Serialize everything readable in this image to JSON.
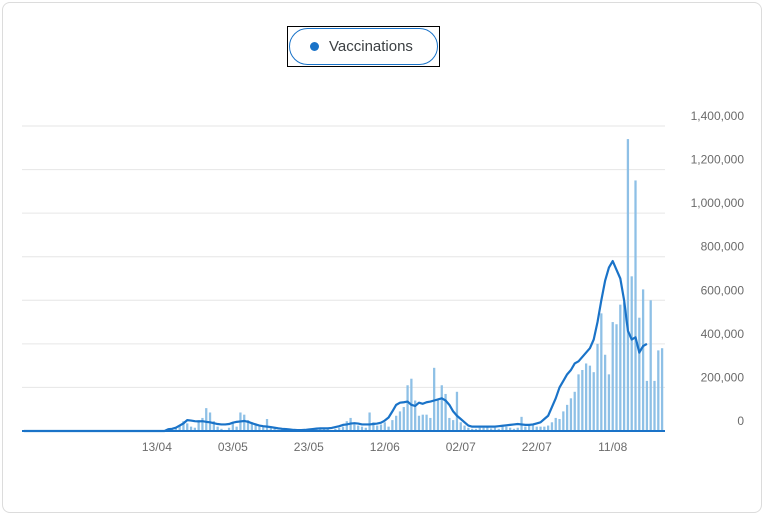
{
  "legend": {
    "label": "Vaccinations",
    "color": "#1a73c8"
  },
  "chart_data": {
    "type": "bar",
    "title": "",
    "xlabel": "",
    "ylabel": "",
    "ylim": [
      0,
      1400000
    ],
    "grid": true,
    "legend_position": "top-center",
    "y_ticks": [
      0,
      200000,
      400000,
      600000,
      800000,
      1000000,
      1200000,
      1400000
    ],
    "y_tick_labels": [
      "0",
      "200,000",
      "400,000",
      "600,000",
      "800,000",
      "1,000,000",
      "1,200,000",
      "1,400,000"
    ],
    "x_tick_labels": [
      {
        "label": "13/04",
        "day_index": 35
      },
      {
        "label": "03/05",
        "day_index": 55
      },
      {
        "label": "23/05",
        "day_index": 75
      },
      {
        "label": "12/06",
        "day_index": 95
      },
      {
        "label": "02/07",
        "day_index": 115
      },
      {
        "label": "22/07",
        "day_index": 135
      },
      {
        "label": "11/08",
        "day_index": 155
      }
    ],
    "series": [
      {
        "name": "Vaccinations",
        "color": "#1a73c8",
        "bar_color": "#8ec0e6",
        "daily_values": [
          0,
          0,
          0,
          0,
          0,
          0,
          0,
          0,
          0,
          0,
          0,
          0,
          0,
          0,
          0,
          0,
          0,
          0,
          0,
          0,
          0,
          0,
          0,
          0,
          0,
          0,
          0,
          0,
          0,
          0,
          0,
          0,
          0,
          0,
          0,
          0,
          0,
          0,
          5000,
          10000,
          15000,
          25000,
          45000,
          35000,
          20000,
          15000,
          50000,
          60000,
          105000,
          85000,
          45000,
          20000,
          10000,
          5000,
          15000,
          40000,
          20000,
          85000,
          75000,
          50000,
          40000,
          35000,
          20000,
          25000,
          55000,
          15000,
          10000,
          5000,
          10000,
          8000,
          5000,
          3000,
          2000,
          2000,
          3000,
          5000,
          8000,
          10000,
          12000,
          15000,
          8000,
          5000,
          10000,
          15000,
          20000,
          45000,
          60000,
          30000,
          25000,
          20000,
          15000,
          85000,
          40000,
          25000,
          30000,
          40000,
          20000,
          50000,
          70000,
          90000,
          110000,
          210000,
          240000,
          140000,
          70000,
          75000,
          75000,
          60000,
          290000,
          140000,
          210000,
          170000,
          60000,
          50000,
          180000,
          40000,
          25000,
          15000,
          10000,
          10000,
          15000,
          15000,
          20000,
          12000,
          15000,
          10000,
          20000,
          20000,
          15000,
          10000,
          15000,
          65000,
          20000,
          25000,
          30000,
          20000,
          20000,
          20000,
          25000,
          40000,
          60000,
          55000,
          90000,
          120000,
          150000,
          180000,
          260000,
          280000,
          310000,
          300000,
          270000,
          400000,
          540000,
          350000,
          260000,
          500000,
          490000,
          580000,
          590000,
          1340000,
          710000,
          1150000,
          520000,
          650000,
          230000,
          600000,
          230000,
          370000,
          380000
        ],
        "rolling_average": [
          0,
          0,
          0,
          0,
          0,
          0,
          0,
          0,
          0,
          0,
          0,
          0,
          0,
          0,
          0,
          0,
          0,
          0,
          0,
          0,
          0,
          0,
          0,
          0,
          0,
          0,
          0,
          0,
          0,
          0,
          0,
          0,
          0,
          0,
          0,
          0,
          0,
          0,
          8000,
          10000,
          15000,
          25000,
          35000,
          50000,
          48000,
          45000,
          44000,
          45000,
          42000,
          40000,
          36000,
          32000,
          30000,
          30000,
          32000,
          38000,
          42000,
          44000,
          46000,
          42000,
          36000,
          30000,
          25000,
          22000,
          20000,
          18000,
          15000,
          12000,
          10000,
          9000,
          7000,
          5000,
          4000,
          4000,
          5000,
          7000,
          9000,
          11000,
          12000,
          12000,
          12000,
          14000,
          18000,
          22000,
          28000,
          30000,
          34000,
          36000,
          34000,
          30000,
          30000,
          30000,
          32000,
          34000,
          38000,
          48000,
          62000,
          90000,
          120000,
          130000,
          132000,
          135000,
          120000,
          115000,
          130000,
          125000,
          132000,
          135000,
          140000,
          145000,
          150000,
          140000,
          120000,
          90000,
          70000,
          55000,
          40000,
          25000,
          20000,
          20000,
          20000,
          20000,
          20000,
          20000,
          20000,
          22000,
          24000,
          26000,
          28000,
          30000,
          32000,
          30000,
          28000,
          28000,
          30000,
          35000,
          40000,
          55000,
          70000,
          110000,
          150000,
          200000,
          230000,
          260000,
          280000,
          310000,
          320000,
          340000,
          360000,
          380000,
          420000,
          500000,
          600000,
          690000,
          750000,
          780000,
          740000,
          700000,
          600000,
          460000,
          420000,
          430000,
          360000,
          390000,
          400000
        ]
      }
    ]
  }
}
